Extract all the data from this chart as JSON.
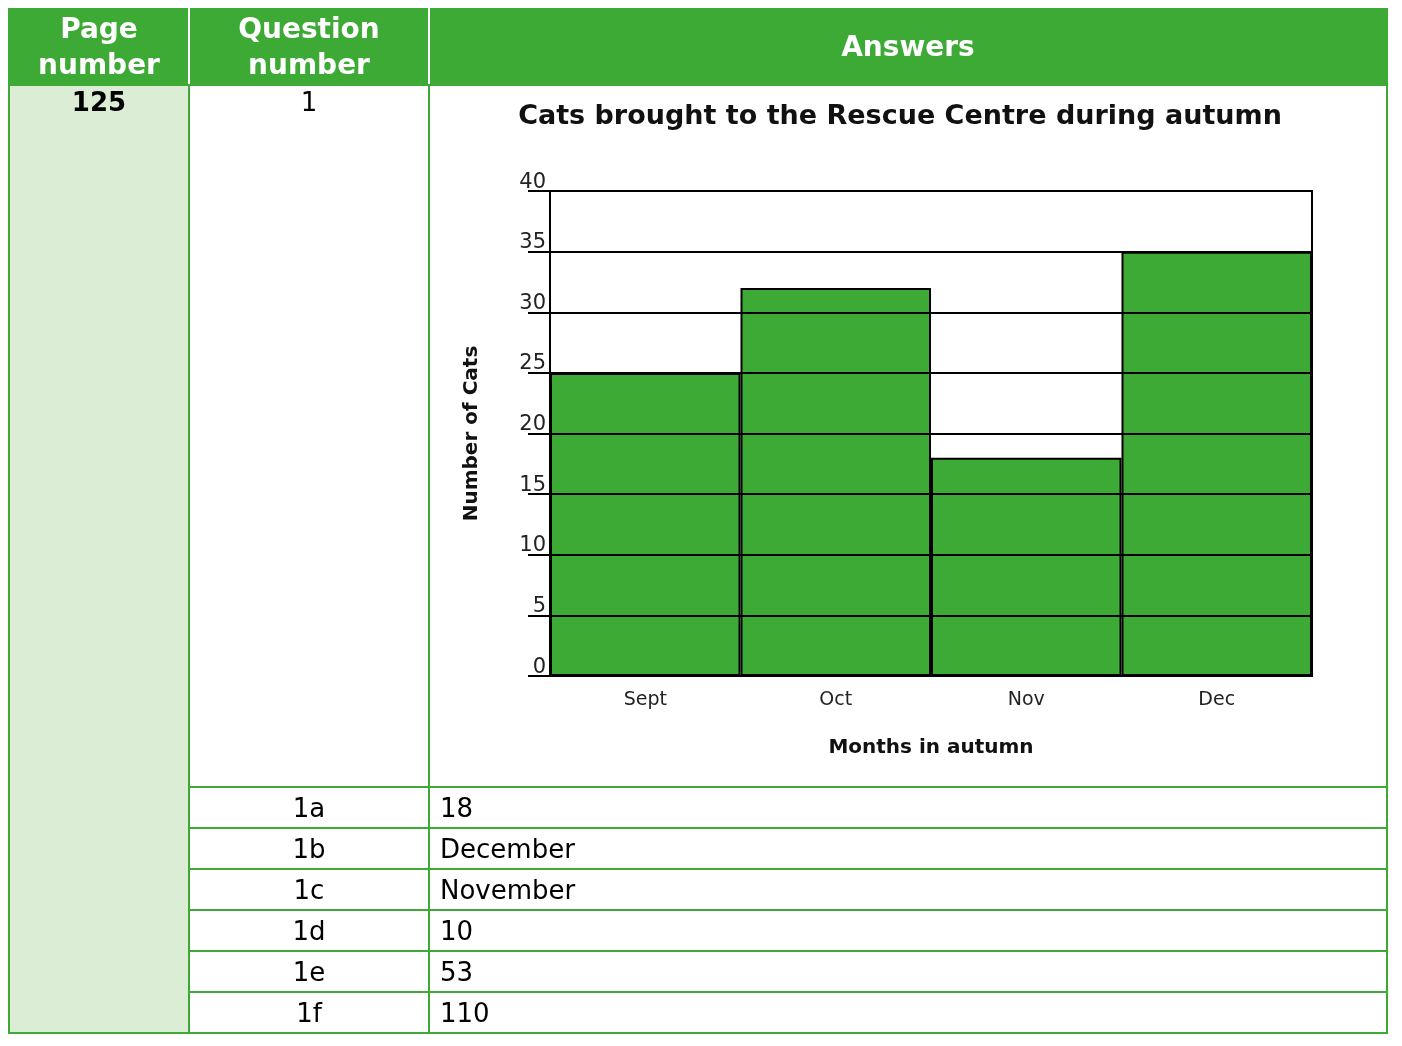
{
  "chart_data": {
    "type": "bar",
    "title": "Cats brought to the Rescue Centre during autumn",
    "xlabel": "Months in autumn",
    "ylabel": "Number of Cats",
    "categories": [
      "Sept",
      "Oct",
      "Nov",
      "Dec"
    ],
    "values": [
      25,
      32,
      18,
      35
    ],
    "color": "#3daa35",
    "ylim": [
      0,
      40
    ],
    "yticks": [
      0,
      5,
      10,
      15,
      20,
      25,
      30,
      35,
      40
    ],
    "grid": "y",
    "annotations": [
      "Page number",
      "Question number",
      "Answers",
      "125",
      "1",
      "1a",
      "18",
      "1b",
      "December",
      "1c",
      "November",
      "1d",
      "10",
      "1e",
      "53",
      "1f",
      "110"
    ]
  }
}
